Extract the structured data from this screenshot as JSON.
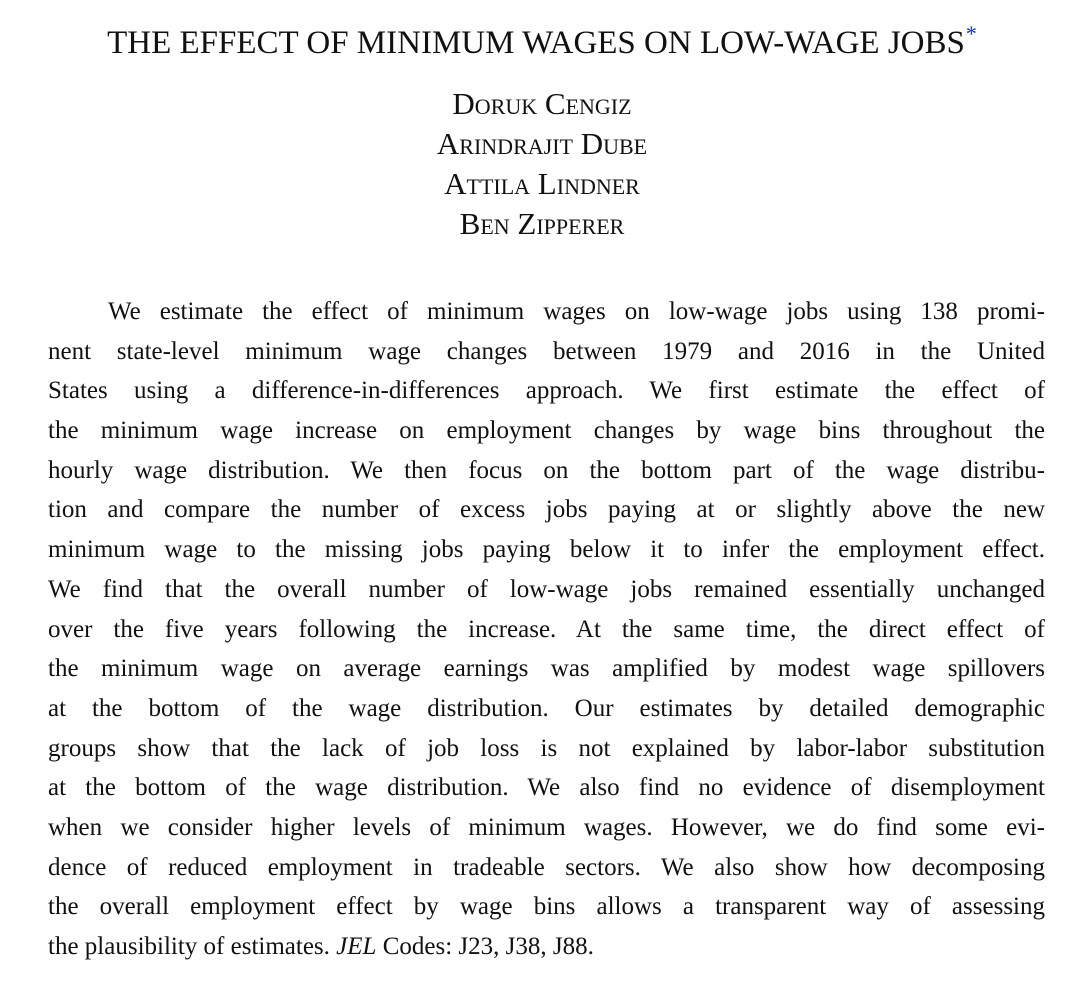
{
  "paper": {
    "title": "THE EFFECT OF MINIMUM WAGES ON LOW-WAGE JOBS",
    "title_footnote_mark": "*",
    "authors": [
      "Doruk Cengiz",
      "Arindrajit Dube",
      "Attila Lindner",
      "Ben Zipperer"
    ],
    "abstract_lines": [
      "We estimate the effect of minimum wages on low-wage jobs using 138 promi-",
      "nent state-level minimum wage changes between 1979 and 2016 in the United",
      "States using a difference-in-differences approach. We first estimate the effect of",
      "the minimum wage increase on employment changes by wage bins throughout the",
      "hourly wage distribution. We then focus on the bottom part of the wage distribu-",
      "tion and compare the number of excess jobs paying at or slightly above the new",
      "minimum wage to the missing jobs paying below it to infer the employment effect.",
      "We find that the overall number of low-wage jobs remained essentially unchanged",
      "over the five years following the increase. At the same time, the direct effect of",
      "the minimum wage on average earnings was amplified by modest wage spillovers",
      "at the bottom of the wage distribution. Our estimates by detailed demographic",
      "groups show that the lack of job loss is not explained by labor-labor substitution",
      "at the bottom of the wage distribution. We also find no evidence of disemployment",
      "when we consider higher levels of minimum wages. However, we do find some evi-",
      "dence of reduced employment in tradeable sectors. We also show how decomposing",
      "the overall employment effect by wage bins allows a transparent way of assessing",
      "the plausibility of estimates."
    ],
    "jel_label": "JEL",
    "jel_rest": " Codes: J23, J38, J88."
  }
}
